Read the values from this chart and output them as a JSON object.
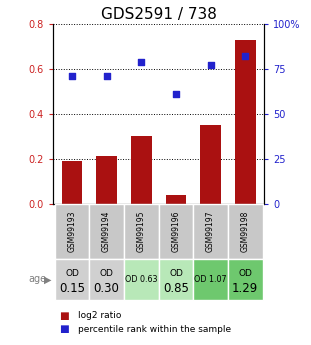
{
  "title": "GDS2591 / 738",
  "samples": [
    "GSM99193",
    "GSM99194",
    "GSM99195",
    "GSM99196",
    "GSM99197",
    "GSM99198"
  ],
  "log2_ratio": [
    0.19,
    0.21,
    0.3,
    0.04,
    0.35,
    0.73
  ],
  "percentile_rank": [
    71,
    71,
    79,
    61,
    77,
    82
  ],
  "bar_color": "#aa1111",
  "dot_color": "#2222cc",
  "ylim_left": [
    0,
    0.8
  ],
  "ylim_right": [
    0,
    100
  ],
  "yticks_left": [
    0,
    0.2,
    0.4,
    0.6,
    0.8
  ],
  "yticks_right": [
    0,
    25,
    50,
    75,
    100
  ],
  "ytick_labels_right": [
    "0",
    "25",
    "50",
    "75",
    "100%"
  ],
  "od_values": [
    "0.15",
    "0.30",
    "0.63",
    "0.85",
    "1.07",
    "1.29"
  ],
  "od_bg_colors": [
    "#d0d0d0",
    "#d0d0d0",
    "#b8e8b8",
    "#b8e8b8",
    "#6ec86e",
    "#6ec86e"
  ],
  "od_fontsize_large": [
    true,
    true,
    false,
    true,
    false,
    true
  ],
  "row_label": "age",
  "legend_bar_label": "log2 ratio",
  "legend_dot_label": "percentile rank within the sample",
  "title_fontsize": 11,
  "tick_label_color_left": "#cc2222",
  "tick_label_color_right": "#2222cc",
  "gsm_bg_color": "#c8c8c8"
}
